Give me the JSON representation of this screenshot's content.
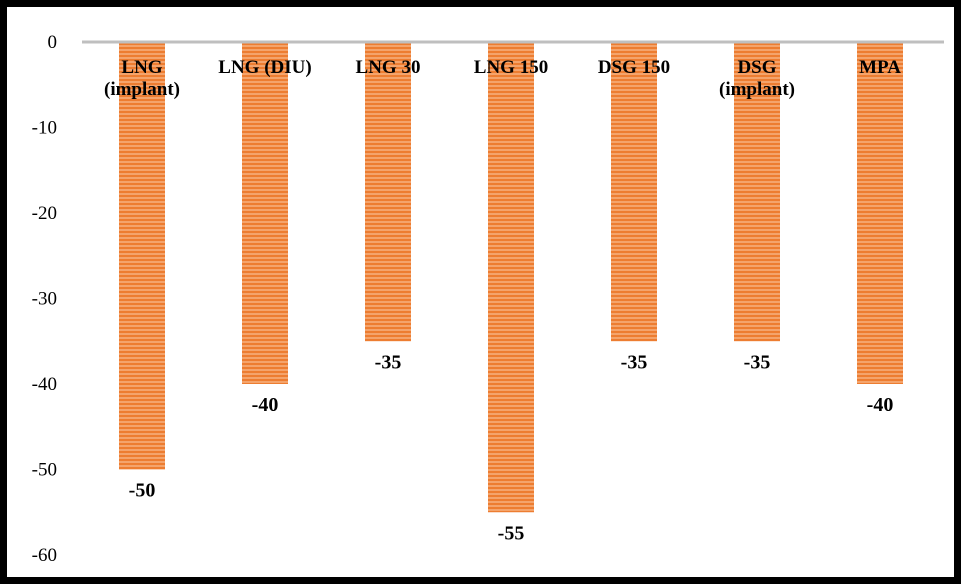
{
  "chart_data": {
    "type": "bar",
    "categories": [
      [
        "LNG",
        "(implant)"
      ],
      [
        "LNG (DIU)"
      ],
      [
        "LNG 30"
      ],
      [
        "LNG 150"
      ],
      [
        "DSG 150"
      ],
      [
        "DSG",
        "(implant)"
      ],
      [
        "MPA"
      ]
    ],
    "values": [
      -50,
      -40,
      -35,
      -55,
      -35,
      -35,
      -40
    ],
    "data_labels": [
      "-50",
      "-40",
      "-35",
      "-55",
      "-35",
      "-35",
      "-40"
    ],
    "title": "",
    "xlabel": "",
    "ylabel": "",
    "ylim": [
      -60,
      0
    ],
    "yticks": [
      "0",
      "-10",
      "-20",
      "-30",
      "-40",
      "-50",
      "-60"
    ],
    "ytick_values": [
      0,
      -10,
      -20,
      -30,
      -40,
      -50,
      -60
    ],
    "grid": false,
    "legend": "none",
    "colors": {
      "bar": "#F4A46C",
      "bar_stripe": "#ED7D31",
      "axis": "#BFBFBF",
      "frame": "#000000"
    }
  }
}
